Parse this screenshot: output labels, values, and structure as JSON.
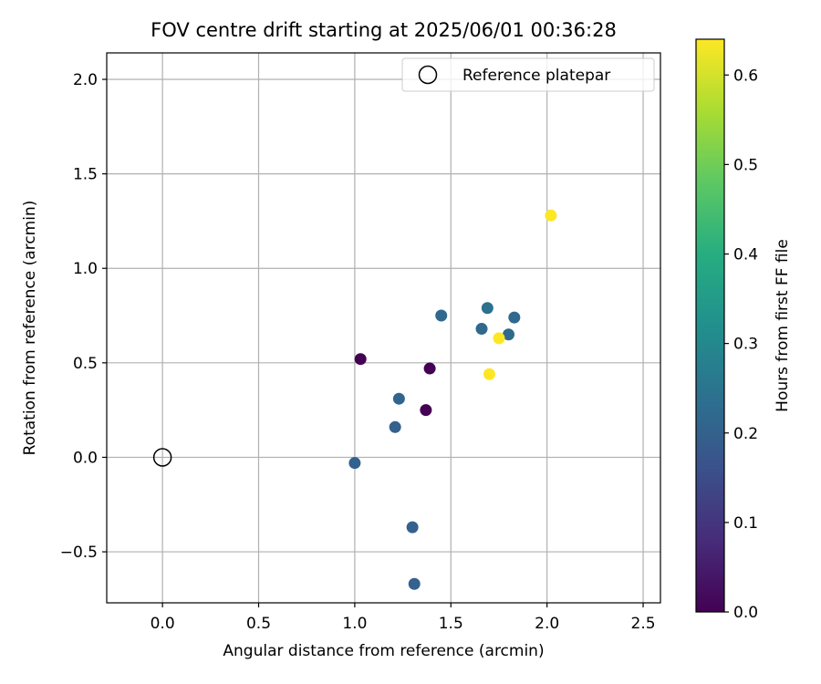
{
  "chart_data": {
    "type": "scatter",
    "title": "FOV centre drift starting at 2025/06/01 00:36:28",
    "xlabel": "Angular distance from reference (arcmin)",
    "ylabel": "Rotation from reference (arcmin)",
    "xlim": [
      -0.29,
      2.59
    ],
    "ylim": [
      -0.77,
      2.14
    ],
    "xticks": [
      "0.0",
      "0.5",
      "1.0",
      "1.5",
      "2.0",
      "2.5"
    ],
    "xtick_values": [
      0.0,
      0.5,
      1.0,
      1.5,
      2.0,
      2.5
    ],
    "yticks": [
      "−0.5",
      "0.0",
      "0.5",
      "1.0",
      "1.5",
      "2.0"
    ],
    "ytick_values": [
      -0.5,
      0.0,
      0.5,
      1.0,
      1.5,
      2.0
    ],
    "grid": true,
    "legend": {
      "entries": [
        "Reference platepar"
      ],
      "placement": "top-right"
    },
    "reference_point": {
      "x": 0.0,
      "y": 0.0,
      "label": "Reference platepar"
    },
    "colorbar": {
      "label": "Hours from first FF file",
      "colormap": "viridis",
      "range": [
        0.0,
        0.64
      ],
      "ticks": [
        "0.0",
        "0.1",
        "0.2",
        "0.3",
        "0.4",
        "0.5",
        "0.6"
      ],
      "tick_values": [
        0.0,
        0.1,
        0.2,
        0.3,
        0.4,
        0.5,
        0.6
      ]
    },
    "points": [
      {
        "x": 1.03,
        "y": 0.52,
        "c": 0.0
      },
      {
        "x": 1.39,
        "y": 0.47,
        "c": 0.0
      },
      {
        "x": 1.37,
        "y": 0.25,
        "c": 0.0
      },
      {
        "x": 1.0,
        "y": -0.03,
        "c": 0.2
      },
      {
        "x": 1.21,
        "y": 0.16,
        "c": 0.2
      },
      {
        "x": 1.23,
        "y": 0.31,
        "c": 0.21
      },
      {
        "x": 1.3,
        "y": -0.37,
        "c": 0.2
      },
      {
        "x": 1.31,
        "y": -0.67,
        "c": 0.2
      },
      {
        "x": 1.45,
        "y": 0.75,
        "c": 0.22
      },
      {
        "x": 1.66,
        "y": 0.68,
        "c": 0.22
      },
      {
        "x": 1.69,
        "y": 0.79,
        "c": 0.24
      },
      {
        "x": 1.8,
        "y": 0.65,
        "c": 0.22
      },
      {
        "x": 1.83,
        "y": 0.74,
        "c": 0.22
      },
      {
        "x": 1.7,
        "y": 0.44,
        "c": 0.64
      },
      {
        "x": 1.75,
        "y": 0.63,
        "c": 0.64
      },
      {
        "x": 2.02,
        "y": 1.28,
        "c": 0.64
      }
    ]
  }
}
